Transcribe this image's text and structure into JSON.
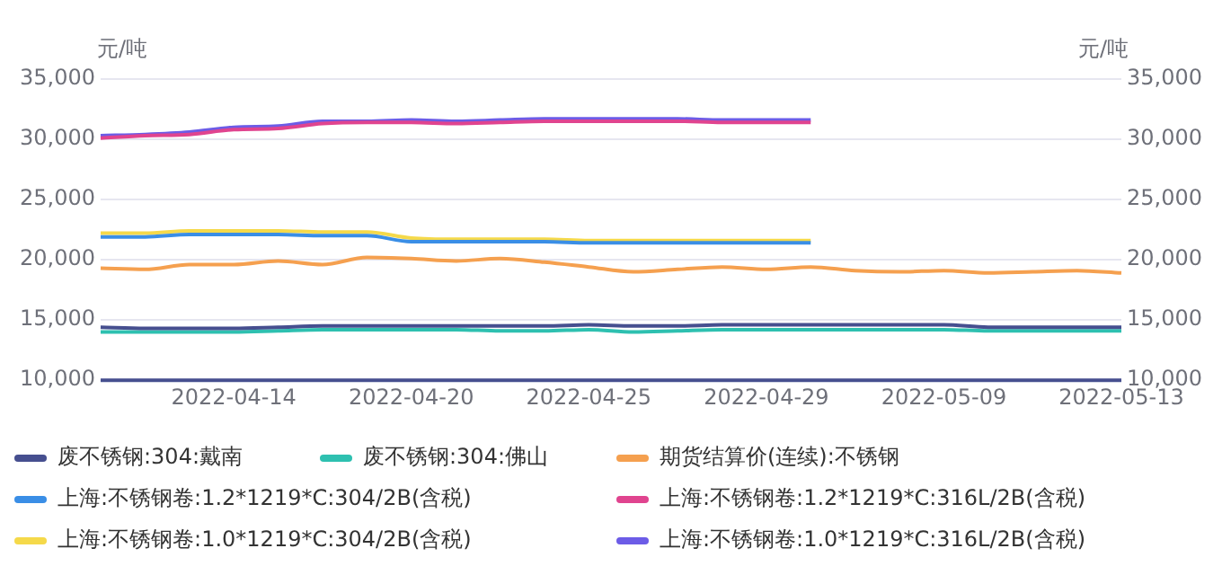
{
  "chart_data": {
    "type": "line",
    "ylabel": "元/吨",
    "y2label": "元/吨",
    "categories": [
      null,
      null,
      null,
      "2022-04-14",
      null,
      null,
      null,
      "2022-04-20",
      null,
      null,
      null,
      "2022-04-25",
      null,
      null,
      null,
      "2022-04-29",
      null,
      null,
      null,
      "2022-05-09",
      null,
      null,
      null,
      "2022-05-13"
    ],
    "ylim": [
      10000,
      35000
    ],
    "yticks": [
      {
        "value": 10000,
        "label": "10,000"
      },
      {
        "value": 15000,
        "label": "15,000"
      },
      {
        "value": 20000,
        "label": "20,000"
      },
      {
        "value": 25000,
        "label": "25,000"
      },
      {
        "value": 30000,
        "label": "30,000"
      },
      {
        "value": 35000,
        "label": "35,000"
      }
    ],
    "y2lim": [
      10000,
      35000
    ],
    "y2ticks": [
      {
        "value": 10000,
        "label": "10,000"
      },
      {
        "value": 15000,
        "label": "15,000"
      },
      {
        "value": 20000,
        "label": "20,000"
      },
      {
        "value": 25000,
        "label": "25,000"
      },
      {
        "value": 30000,
        "label": "30,000"
      },
      {
        "value": 35000,
        "label": "35,000"
      }
    ],
    "grid": "y",
    "legend": "bottom",
    "marker": "none",
    "line_style": "solid",
    "series": [
      {
        "name": "废不锈钢:304:戴南",
        "color": "#464f8f",
        "values": [
          14400,
          14300,
          14300,
          14300,
          14400,
          14500,
          14500,
          14500,
          14500,
          14500,
          14500,
          14600,
          14500,
          14500,
          14600,
          14600,
          14600,
          14600,
          14600,
          14600,
          14400,
          14400,
          14400,
          14400
        ]
      },
      {
        "name": "废不锈钢:304:佛山",
        "color": "#2ec0b0",
        "values": [
          14000,
          14000,
          14000,
          14000,
          14100,
          14200,
          14200,
          14200,
          14200,
          14100,
          14100,
          14200,
          14000,
          14100,
          14200,
          14200,
          14200,
          14200,
          14200,
          14200,
          14100,
          14100,
          14100,
          14100
        ]
      },
      {
        "name": "期货结算价(连续):不锈钢",
        "color": "#f5a04f",
        "values": [
          19300,
          19200,
          19600,
          19600,
          19900,
          19600,
          20200,
          20100,
          19900,
          20100,
          19800,
          19400,
          19000,
          19200,
          19400,
          19200,
          19400,
          19100,
          19000,
          19100,
          18900,
          19000,
          19100,
          18900
        ]
      },
      {
        "name": "上海:不锈钢卷:1.2*1219*C:304/2B(含税)",
        "color": "#3a8ee6",
        "values": [
          21900,
          21900,
          22100,
          22100,
          22100,
          22000,
          22000,
          21500,
          21500,
          21500,
          21500,
          21400,
          21400,
          21400,
          21400,
          21400,
          21400,
          null,
          null,
          null,
          null,
          null,
          null,
          null
        ]
      },
      {
        "name": "上海:不锈钢卷:1.2*1219*C:316L/2B(含税)",
        "color": "#e0448f",
        "values": [
          30100,
          30300,
          30400,
          30800,
          30900,
          31300,
          31400,
          31400,
          31300,
          31400,
          31500,
          31500,
          31500,
          31500,
          31400,
          31400,
          31400,
          null,
          null,
          null,
          null,
          null,
          null,
          null
        ]
      },
      {
        "name": "上海:不锈钢卷:1.0*1219*C:304/2B(含税)",
        "color": "#f5d94a",
        "values": [
          22200,
          22200,
          22400,
          22400,
          22400,
          22300,
          22300,
          21800,
          21700,
          21700,
          21700,
          21600,
          21600,
          21600,
          21600,
          21600,
          21600,
          null,
          null,
          null,
          null,
          null,
          null,
          null
        ]
      },
      {
        "name": "上海:不锈钢卷:1.0*1219*C:316L/2B(含税)",
        "color": "#6c5ce7",
        "values": [
          30300,
          30400,
          30600,
          31000,
          31100,
          31500,
          31500,
          31600,
          31500,
          31600,
          31700,
          31700,
          31700,
          31700,
          31600,
          31600,
          31600,
          null,
          null,
          null,
          null,
          null,
          null,
          null
        ]
      }
    ]
  }
}
